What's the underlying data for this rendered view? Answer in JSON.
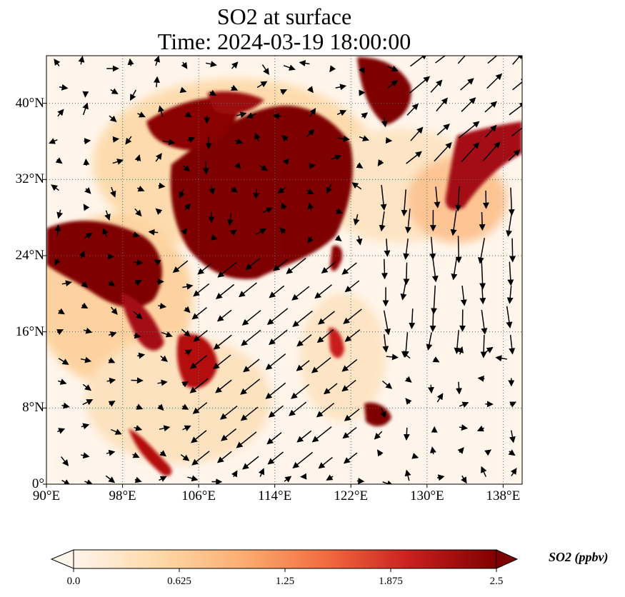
{
  "title": {
    "line1": "SO2 at surface",
    "line2": "Time: 2024-03-19 18:00:00"
  },
  "map": {
    "extent": {
      "lon_min": 90,
      "lon_max": 140,
      "lat_min": 0,
      "lat_max": 45
    },
    "gridlines": "dotted",
    "lon_ticks": [
      {
        "value": 90,
        "label": "90°E"
      },
      {
        "value": 98,
        "label": "98°E"
      },
      {
        "value": 106,
        "label": "106°E"
      },
      {
        "value": 114,
        "label": "114°E"
      },
      {
        "value": 122,
        "label": "122°E"
      },
      {
        "value": 130,
        "label": "130°E"
      },
      {
        "value": 138,
        "label": "138°E"
      }
    ],
    "lat_ticks": [
      {
        "value": 0,
        "label": "0°"
      },
      {
        "value": 8,
        "label": "8°N"
      },
      {
        "value": 16,
        "label": "16°N"
      },
      {
        "value": 24,
        "label": "24°N"
      },
      {
        "value": 32,
        "label": "32°N"
      },
      {
        "value": 40,
        "label": "40°N"
      }
    ]
  },
  "colorbar": {
    "label": "SO2 (ppbv)",
    "min": 0.0,
    "max": 2.5,
    "extend": "both",
    "ticks": [
      "0.0",
      "0.625",
      "1.25",
      "1.875",
      "2.5"
    ],
    "colors": [
      "#fff5eb",
      "#fdd9a8",
      "#fcad72",
      "#f16a3f",
      "#c81e1e",
      "#7f0000"
    ]
  }
}
